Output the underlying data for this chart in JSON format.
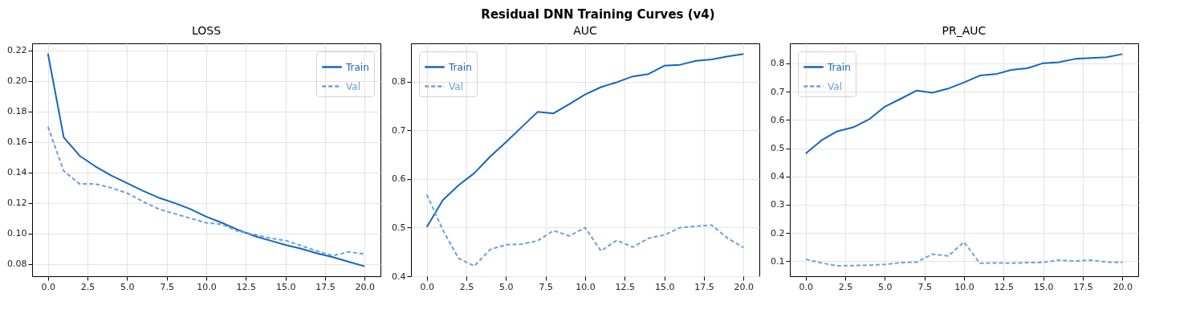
{
  "chart_data": [
    {
      "type": "line",
      "title": "LOSS",
      "annotations": [
        "Residual DNN Training Curves (v4)"
      ],
      "x": [
        0,
        1,
        2,
        3,
        4,
        5,
        6,
        7,
        8,
        9,
        10,
        11,
        12,
        13,
        14,
        15,
        16,
        17,
        18,
        19,
        20
      ],
      "series": [
        {
          "name": "Train",
          "color": "#1565c0",
          "line_style": "solid",
          "values": [
            0.218,
            0.163,
            0.151,
            0.144,
            0.138,
            0.133,
            0.128,
            0.1235,
            0.12,
            0.116,
            0.111,
            0.107,
            0.1025,
            0.0985,
            0.0955,
            0.0925,
            0.09,
            0.087,
            0.0845,
            0.0815,
            0.0785
          ]
        },
        {
          "name": "Val",
          "color": "#6f9fdd",
          "line_style": "dashed",
          "values": [
            0.17,
            0.141,
            0.1325,
            0.1325,
            0.13,
            0.1265,
            0.121,
            0.116,
            0.113,
            0.11,
            0.107,
            0.106,
            0.1015,
            0.0995,
            0.097,
            0.0955,
            0.092,
            0.0885,
            0.0855,
            0.088,
            0.0865
          ]
        }
      ],
      "xlim": [
        -1,
        21
      ],
      "xticks": [
        {
          "value": 0,
          "label": "0.0"
        },
        2.5,
        {
          "value": 5,
          "label": "5.0"
        },
        7.5,
        {
          "value": 10,
          "label": "10.0"
        },
        12.5,
        {
          "value": 15,
          "label": "15.0"
        },
        17.5,
        {
          "value": 20,
          "label": "20.0"
        }
      ],
      "ylim": [
        0.072,
        0.2247
      ],
      "yticks": [
        0.08,
        {
          "value": 0.1,
          "label": "0.10"
        },
        0.12,
        0.14,
        0.16,
        0.18,
        {
          "value": 0.2,
          "label": "0.20"
        },
        0.22
      ],
      "grid": true,
      "legend": "top right"
    },
    {
      "type": "line",
      "title": "AUC",
      "x": [
        0,
        1,
        2,
        3,
        4,
        5,
        6,
        7,
        8,
        9,
        10,
        11,
        12,
        13,
        14,
        15,
        16,
        17,
        18,
        19,
        20
      ],
      "series": [
        {
          "name": "Train",
          "color": "#1565c0",
          "line_style": "solid",
          "values": [
            0.501,
            0.556,
            0.587,
            0.612,
            0.646,
            0.676,
            0.707,
            0.738,
            0.735,
            0.754,
            0.774,
            0.789,
            0.799,
            0.811,
            0.816,
            0.833,
            0.835,
            0.843,
            0.846,
            0.852,
            0.857
          ]
        },
        {
          "name": "Val",
          "color": "#6f9fdd",
          "line_style": "dashed",
          "values": [
            0.568,
            0.496,
            0.437,
            0.421,
            0.455,
            0.465,
            0.466,
            0.473,
            0.494,
            0.483,
            0.5,
            0.452,
            0.474,
            0.46,
            0.478,
            0.485,
            0.5,
            0.503,
            0.505,
            0.478,
            0.459
          ]
        }
      ],
      "xlim": [
        -1,
        21
      ],
      "xticks": [
        {
          "value": 0,
          "label": "0.0"
        },
        2.5,
        {
          "value": 5,
          "label": "5.0"
        },
        7.5,
        {
          "value": 10,
          "label": "10.0"
        },
        12.5,
        {
          "value": 15,
          "label": "15.0"
        },
        17.5,
        {
          "value": 20,
          "label": "20.0"
        }
      ],
      "ylim": [
        0.4,
        0.879
      ],
      "yticks": [
        0.4,
        0.5,
        0.6,
        0.7,
        0.8
      ],
      "grid": true,
      "legend": "top left"
    },
    {
      "type": "line",
      "title": "PR_AUC",
      "x": [
        0,
        1,
        2,
        3,
        4,
        5,
        6,
        7,
        8,
        9,
        10,
        11,
        12,
        13,
        14,
        15,
        16,
        17,
        18,
        19,
        20
      ],
      "series": [
        {
          "name": "Train",
          "color": "#1565c0",
          "line_style": "solid",
          "values": [
            0.481,
            0.528,
            0.56,
            0.574,
            0.602,
            0.647,
            0.675,
            0.704,
            0.696,
            0.711,
            0.733,
            0.757,
            0.762,
            0.777,
            0.783,
            0.801,
            0.804,
            0.816,
            0.819,
            0.822,
            0.833
          ]
        },
        {
          "name": "Val",
          "color": "#6f9fdd",
          "line_style": "dashed",
          "values": [
            0.107,
            0.094,
            0.084,
            0.085,
            0.086,
            0.089,
            0.095,
            0.097,
            0.125,
            0.119,
            0.168,
            0.093,
            0.094,
            0.093,
            0.095,
            0.096,
            0.104,
            0.101,
            0.104,
            0.097,
            0.096
          ]
        }
      ],
      "xlim": [
        -1,
        21
      ],
      "xticks": [
        {
          "value": 0,
          "label": "0.0"
        },
        2.5,
        {
          "value": 5,
          "label": "5.0"
        },
        7.5,
        {
          "value": 10,
          "label": "10.0"
        },
        12.5,
        {
          "value": 15,
          "label": "15.0"
        },
        17.5,
        {
          "value": 20,
          "label": "20.0"
        }
      ],
      "ylim": [
        0.047,
        0.871
      ],
      "yticks": [
        0.1,
        0.2,
        0.3,
        0.4,
        0.5,
        0.6,
        0.7,
        0.8
      ],
      "grid": true,
      "legend": "top left"
    }
  ]
}
